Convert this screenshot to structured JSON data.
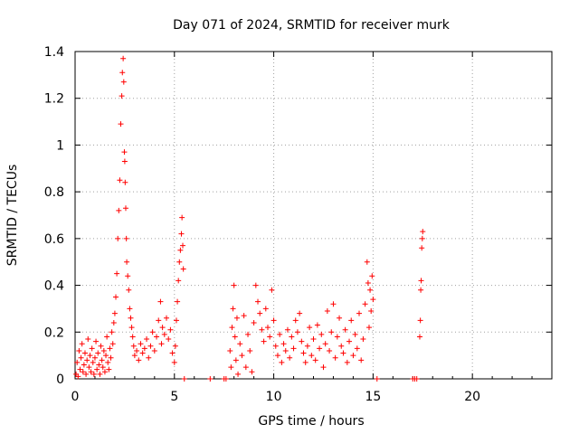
{
  "chart_data": {
    "type": "scatter",
    "title": "Day 071 of 2024, SRMTID for receiver murk",
    "xlabel": "GPS time / hours",
    "ylabel": "SRMTID / TECUs",
    "xlim": [
      0,
      24
    ],
    "ylim": [
      0,
      1.4
    ],
    "x_ticks": [
      0,
      5,
      10,
      15,
      20
    ],
    "x_tick_labels": [
      "0",
      "5",
      "10",
      "15",
      "20"
    ],
    "y_ticks": [
      0,
      0.2,
      0.4,
      0.6,
      0.8,
      1.0,
      1.2,
      1.4
    ],
    "y_tick_labels": [
      "0",
      "0.2",
      "0.4",
      "0.6",
      "0.8",
      "1",
      "1.2",
      "1.4"
    ],
    "grid": true,
    "marker": "+",
    "series": [
      {
        "color": "#ff0000",
        "points": [
          [
            0.05,
            0.02
          ],
          [
            0.1,
            0.07
          ],
          [
            0.15,
            0.01
          ],
          [
            0.2,
            0.12
          ],
          [
            0.25,
            0.04
          ],
          [
            0.3,
            0.09
          ],
          [
            0.35,
            0.15
          ],
          [
            0.4,
            0.03
          ],
          [
            0.45,
            0.06
          ],
          [
            0.5,
            0.11
          ],
          [
            0.55,
            0.02
          ],
          [
            0.6,
            0.08
          ],
          [
            0.65,
            0.17
          ],
          [
            0.7,
            0.05
          ],
          [
            0.75,
            0.1
          ],
          [
            0.8,
            0.03
          ],
          [
            0.85,
            0.13
          ],
          [
            0.9,
            0.07
          ],
          [
            0.95,
            0.02
          ],
          [
            1.0,
            0.09
          ],
          [
            1.05,
            0.16
          ],
          [
            1.1,
            0.04
          ],
          [
            1.15,
            0.11
          ],
          [
            1.2,
            0.06
          ],
          [
            1.25,
            0.02
          ],
          [
            1.3,
            0.14
          ],
          [
            1.35,
            0.08
          ],
          [
            1.4,
            0.05
          ],
          [
            1.45,
            0.12
          ],
          [
            1.5,
            0.03
          ],
          [
            1.55,
            0.1
          ],
          [
            1.6,
            0.18
          ],
          [
            1.65,
            0.07
          ],
          [
            1.7,
            0.04
          ],
          [
            1.75,
            0.13
          ],
          [
            1.8,
            0.09
          ],
          [
            1.85,
            0.2
          ],
          [
            1.9,
            0.15
          ],
          [
            1.95,
            0.24
          ],
          [
            2.0,
            0.28
          ],
          [
            2.05,
            0.35
          ],
          [
            2.1,
            0.45
          ],
          [
            2.15,
            0.6
          ],
          [
            2.2,
            0.72
          ],
          [
            2.25,
            0.85
          ],
          [
            2.3,
            1.09
          ],
          [
            2.35,
            1.21
          ],
          [
            2.38,
            1.31
          ],
          [
            2.42,
            1.37
          ],
          [
            2.45,
            1.27
          ],
          [
            2.48,
            0.97
          ],
          [
            2.5,
            0.93
          ],
          [
            2.52,
            0.84
          ],
          [
            2.55,
            0.73
          ],
          [
            2.58,
            0.6
          ],
          [
            2.6,
            0.5
          ],
          [
            2.65,
            0.44
          ],
          [
            2.7,
            0.38
          ],
          [
            2.75,
            0.3
          ],
          [
            2.8,
            0.26
          ],
          [
            2.85,
            0.22
          ],
          [
            2.9,
            0.18
          ],
          [
            2.95,
            0.14
          ],
          [
            3.0,
            0.1
          ],
          [
            3.1,
            0.12
          ],
          [
            3.2,
            0.08
          ],
          [
            3.3,
            0.15
          ],
          [
            3.4,
            0.11
          ],
          [
            3.5,
            0.13
          ],
          [
            3.6,
            0.17
          ],
          [
            3.7,
            0.09
          ],
          [
            3.8,
            0.14
          ],
          [
            3.9,
            0.2
          ],
          [
            4.0,
            0.12
          ],
          [
            4.1,
            0.18
          ],
          [
            4.2,
            0.25
          ],
          [
            4.3,
            0.33
          ],
          [
            4.35,
            0.15
          ],
          [
            4.4,
            0.22
          ],
          [
            4.5,
            0.19
          ],
          [
            4.6,
            0.26
          ],
          [
            4.7,
            0.17
          ],
          [
            4.8,
            0.21
          ],
          [
            4.9,
            0.11
          ],
          [
            5.0,
            0.07
          ],
          [
            5.05,
            0.14
          ],
          [
            5.1,
            0.25
          ],
          [
            5.15,
            0.33
          ],
          [
            5.2,
            0.42
          ],
          [
            5.25,
            0.5
          ],
          [
            5.3,
            0.55
          ],
          [
            5.35,
            0.62
          ],
          [
            5.38,
            0.69
          ],
          [
            5.42,
            0.57
          ],
          [
            5.45,
            0.47
          ],
          [
            5.5,
            0.0
          ],
          [
            6.8,
            0.0
          ],
          [
            7.5,
            0.0
          ],
          [
            7.6,
            0.0
          ],
          [
            7.8,
            0.12
          ],
          [
            7.85,
            0.05
          ],
          [
            7.9,
            0.22
          ],
          [
            7.95,
            0.3
          ],
          [
            8.0,
            0.4
          ],
          [
            8.05,
            0.18
          ],
          [
            8.1,
            0.08
          ],
          [
            8.15,
            0.26
          ],
          [
            8.2,
            0.02
          ],
          [
            8.3,
            0.15
          ],
          [
            8.4,
            0.1
          ],
          [
            8.5,
            0.27
          ],
          [
            8.6,
            0.05
          ],
          [
            8.7,
            0.19
          ],
          [
            8.8,
            0.12
          ],
          [
            8.9,
            0.03
          ],
          [
            9.0,
            0.24
          ],
          [
            9.1,
            0.4
          ],
          [
            9.2,
            0.33
          ],
          [
            9.3,
            0.28
          ],
          [
            9.4,
            0.21
          ],
          [
            9.5,
            0.16
          ],
          [
            9.6,
            0.3
          ],
          [
            9.7,
            0.22
          ],
          [
            9.8,
            0.18
          ],
          [
            9.9,
            0.38
          ],
          [
            10.0,
            0.25
          ],
          [
            10.1,
            0.14
          ],
          [
            10.2,
            0.1
          ],
          [
            10.3,
            0.19
          ],
          [
            10.4,
            0.07
          ],
          [
            10.5,
            0.15
          ],
          [
            10.6,
            0.12
          ],
          [
            10.7,
            0.21
          ],
          [
            10.8,
            0.09
          ],
          [
            10.9,
            0.18
          ],
          [
            11.0,
            0.13
          ],
          [
            11.1,
            0.25
          ],
          [
            11.2,
            0.2
          ],
          [
            11.3,
            0.28
          ],
          [
            11.4,
            0.16
          ],
          [
            11.5,
            0.11
          ],
          [
            11.6,
            0.07
          ],
          [
            11.7,
            0.14
          ],
          [
            11.8,
            0.22
          ],
          [
            11.9,
            0.1
          ],
          [
            12.0,
            0.17
          ],
          [
            12.1,
            0.08
          ],
          [
            12.2,
            0.23
          ],
          [
            12.3,
            0.13
          ],
          [
            12.4,
            0.19
          ],
          [
            12.5,
            0.05
          ],
          [
            12.6,
            0.15
          ],
          [
            12.7,
            0.29
          ],
          [
            12.8,
            0.12
          ],
          [
            12.9,
            0.2
          ],
          [
            13.0,
            0.32
          ],
          [
            13.1,
            0.09
          ],
          [
            13.2,
            0.18
          ],
          [
            13.3,
            0.26
          ],
          [
            13.4,
            0.14
          ],
          [
            13.5,
            0.11
          ],
          [
            13.6,
            0.21
          ],
          [
            13.7,
            0.07
          ],
          [
            13.8,
            0.16
          ],
          [
            13.9,
            0.25
          ],
          [
            14.0,
            0.1
          ],
          [
            14.1,
            0.19
          ],
          [
            14.2,
            0.13
          ],
          [
            14.3,
            0.28
          ],
          [
            14.4,
            0.08
          ],
          [
            14.5,
            0.17
          ],
          [
            14.6,
            0.32
          ],
          [
            14.7,
            0.5
          ],
          [
            14.75,
            0.41
          ],
          [
            14.8,
            0.22
          ],
          [
            14.85,
            0.38
          ],
          [
            14.9,
            0.29
          ],
          [
            14.95,
            0.44
          ],
          [
            15.0,
            0.34
          ],
          [
            15.2,
            0.0
          ],
          [
            17.0,
            0.0
          ],
          [
            17.1,
            0.0
          ],
          [
            17.2,
            0.0
          ],
          [
            17.35,
            0.18
          ],
          [
            17.38,
            0.25
          ],
          [
            17.4,
            0.38
          ],
          [
            17.42,
            0.42
          ],
          [
            17.45,
            0.56
          ],
          [
            17.48,
            0.6
          ],
          [
            17.5,
            0.63
          ]
        ]
      }
    ]
  }
}
